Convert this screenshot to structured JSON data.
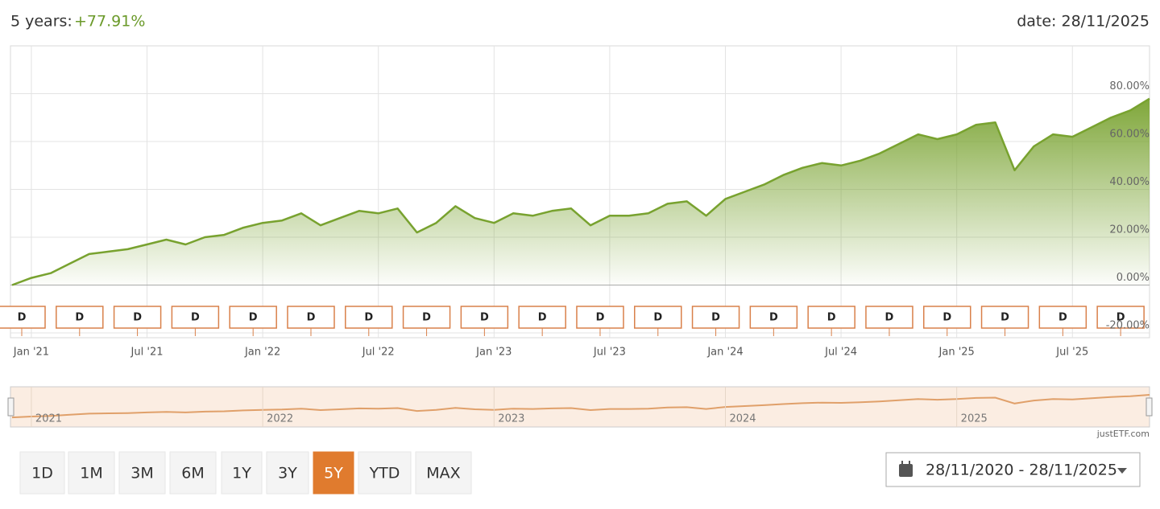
{
  "header": {
    "period": "5 years:",
    "change": "+77.91%",
    "date": "date: 28/11/2025"
  },
  "chart_data": {
    "type": "area",
    "x": [
      "2020-12",
      "2021-01",
      "2021-02",
      "2021-03",
      "2021-04",
      "2021-05",
      "2021-06",
      "2021-07",
      "2021-08",
      "2021-09",
      "2021-10",
      "2021-11",
      "2021-12",
      "2022-01",
      "2022-02",
      "2022-03",
      "2022-04",
      "2022-05",
      "2022-06",
      "2022-07",
      "2022-08",
      "2022-09",
      "2022-10",
      "2022-11",
      "2022-12",
      "2023-01",
      "2023-02",
      "2023-03",
      "2023-04",
      "2023-05",
      "2023-06",
      "2023-07",
      "2023-08",
      "2023-09",
      "2023-10",
      "2023-11",
      "2023-12",
      "2024-01",
      "2024-02",
      "2024-03",
      "2024-04",
      "2024-05",
      "2024-06",
      "2024-07",
      "2024-08",
      "2024-09",
      "2024-10",
      "2024-11",
      "2024-12",
      "2025-01",
      "2025-02",
      "2025-03",
      "2025-04",
      "2025-05",
      "2025-06",
      "2025-07",
      "2025-08",
      "2025-09",
      "2025-10",
      "2025-11"
    ],
    "series": [
      {
        "color": "#78a22f",
        "values": [
          0,
          3,
          5,
          9,
          13,
          14,
          15,
          17,
          19,
          17,
          20,
          21,
          24,
          26,
          27,
          30,
          25,
          28,
          31,
          30,
          32,
          22,
          26,
          33,
          28,
          26,
          30,
          29,
          31,
          32,
          25,
          29,
          29,
          30,
          34,
          35,
          29,
          36,
          39,
          42,
          46,
          49,
          51,
          50,
          52,
          55,
          59,
          63,
          61,
          63,
          67,
          68,
          48,
          58,
          63,
          62,
          66,
          70,
          73,
          77.91
        ]
      }
    ],
    "xlim": [
      "2020-12",
      "2025-11"
    ],
    "xticks": [
      {
        "value": "2021-01",
        "label": "Jan '21"
      },
      {
        "value": "2021-07",
        "label": "Jul '21"
      },
      {
        "value": "2022-01",
        "label": "Jan '22"
      },
      {
        "value": "2022-07",
        "label": "Jul '22"
      },
      {
        "value": "2023-01",
        "label": "Jan '23"
      },
      {
        "value": "2023-07",
        "label": "Jul '23"
      },
      {
        "value": "2024-01",
        "label": "Jan '24"
      },
      {
        "value": "2024-07",
        "label": "Jul '24"
      },
      {
        "value": "2025-01",
        "label": "Jan '25"
      },
      {
        "value": "2025-07",
        "label": "Jul '25"
      }
    ],
    "ylim": [
      -22,
      100
    ],
    "yticks": [
      {
        "value": -20,
        "label": "-20.00%"
      },
      {
        "value": 0,
        "label": "0.00%"
      },
      {
        "value": 20,
        "label": "20.00%"
      },
      {
        "value": 40,
        "label": "40.00%"
      },
      {
        "value": 60,
        "label": "60.00%"
      },
      {
        "value": 80,
        "label": "80.00%"
      }
    ],
    "grid": true,
    "events": [
      {
        "x": "2020-12",
        "label": "D"
      },
      {
        "x": "2021-03",
        "label": "D"
      },
      {
        "x": "2021-06",
        "label": "D"
      },
      {
        "x": "2021-09",
        "label": "D"
      },
      {
        "x": "2021-12",
        "label": "D"
      },
      {
        "x": "2022-03",
        "label": "D"
      },
      {
        "x": "2022-06",
        "label": "D"
      },
      {
        "x": "2022-09",
        "label": "D"
      },
      {
        "x": "2022-12",
        "label": "D"
      },
      {
        "x": "2023-03",
        "label": "D"
      },
      {
        "x": "2023-06",
        "label": "D"
      },
      {
        "x": "2023-09",
        "label": "D"
      },
      {
        "x": "2023-12",
        "label": "D"
      },
      {
        "x": "2024-03",
        "label": "D"
      },
      {
        "x": "2024-06",
        "label": "D"
      },
      {
        "x": "2024-09",
        "label": "D"
      },
      {
        "x": "2024-12",
        "label": "D"
      },
      {
        "x": "2025-03",
        "label": "D"
      },
      {
        "x": "2025-06",
        "label": "D"
      },
      {
        "x": "2025-09",
        "label": "D"
      }
    ],
    "navigator_labels": [
      {
        "value": "2021-01",
        "label": "2021"
      },
      {
        "value": "2022-01",
        "label": "2022"
      },
      {
        "value": "2023-01",
        "label": "2023"
      },
      {
        "value": "2024-01",
        "label": "2024"
      },
      {
        "value": "2025-01",
        "label": "2025"
      }
    ],
    "credit": "justETF.com"
  },
  "buttons": [
    "1D",
    "1M",
    "3M",
    "6M",
    "1Y",
    "3Y",
    "5Y",
    "YTD",
    "MAX"
  ],
  "active_button": "5Y",
  "date_range": "28/11/2020 - 28/11/2025"
}
